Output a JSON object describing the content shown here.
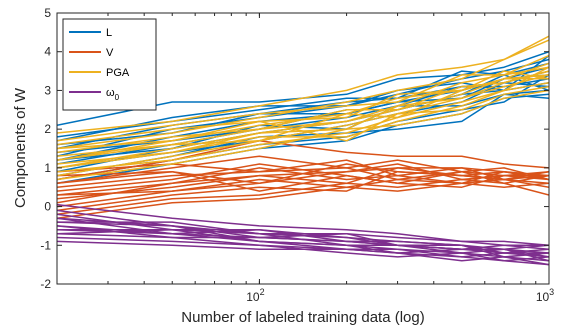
{
  "chart_data": {
    "type": "line",
    "xscale": "log",
    "xlabel": "Number of labeled training data (log)",
    "ylabel": "Components of W",
    "xlim": [
      20,
      1000
    ],
    "ylim": [
      -2,
      5
    ],
    "x_ticks": [
      {
        "value": 100,
        "base": "10",
        "exp": "2"
      },
      {
        "value": 1000,
        "base": "10",
        "exp": "3"
      }
    ],
    "y_ticks": [
      -2,
      -1,
      0,
      1,
      2,
      3,
      4,
      5
    ],
    "grid": false,
    "legend": {
      "placement": "top-left",
      "entries": [
        {
          "series": "L",
          "label": "L",
          "sub": ""
        },
        {
          "series": "V",
          "label": "V",
          "sub": ""
        },
        {
          "series": "PGA",
          "label": "PGA",
          "sub": ""
        },
        {
          "series": "omega0",
          "label": "ω",
          "sub": "0"
        }
      ]
    },
    "x": [
      20,
      50,
      100,
      200,
      300,
      500,
      700,
      1000
    ],
    "series": [
      {
        "name": "L",
        "color": "#0072BD",
        "lines": [
          [
            2.1,
            2.7,
            2.7,
            2.9,
            3.3,
            3.4,
            3.6,
            4.0
          ],
          [
            1.7,
            2.3,
            2.6,
            2.6,
            2.9,
            3.3,
            3.5,
            3.8
          ],
          [
            1.5,
            2.1,
            2.4,
            2.7,
            2.8,
            3.1,
            3.2,
            3.5
          ],
          [
            1.2,
            1.8,
            2.2,
            2.4,
            2.7,
            3.0,
            3.3,
            3.6
          ],
          [
            0.9,
            1.5,
            1.9,
            2.2,
            2.5,
            2.9,
            3.0,
            3.2
          ],
          [
            1.6,
            1.9,
            2.4,
            2.4,
            2.7,
            2.8,
            3.3,
            3.4
          ],
          [
            1.1,
            1.6,
            2.0,
            2.3,
            2.6,
            3.1,
            3.1,
            3.3
          ],
          [
            1.4,
            1.7,
            2.0,
            2.5,
            2.5,
            2.9,
            3.4,
            3.0
          ],
          [
            0.8,
            1.3,
            1.8,
            1.9,
            2.0,
            2.2,
            2.9,
            2.8
          ],
          [
            1.3,
            2.0,
            2.3,
            2.6,
            3.0,
            3.2,
            3.0,
            3.9
          ],
          [
            1.0,
            1.4,
            1.7,
            2.1,
            2.4,
            2.7,
            3.2,
            3.1
          ],
          [
            0.7,
            1.2,
            1.6,
            1.8,
            2.2,
            2.5,
            2.7,
            3.4
          ],
          [
            1.8,
            2.2,
            2.5,
            2.8,
            2.8,
            3.5,
            3.4,
            3.7
          ],
          [
            1.2,
            1.5,
            2.1,
            2.0,
            2.6,
            2.6,
            2.9,
            3.0
          ],
          [
            0.6,
            1.1,
            1.5,
            1.7,
            2.1,
            2.4,
            2.8,
            2.9
          ]
        ]
      },
      {
        "name": "V",
        "color": "#D95319",
        "lines": [
          [
            0.7,
            1.2,
            1.7,
            1.4,
            1.3,
            1.3,
            1.1,
            1.0
          ],
          [
            0.6,
            1.0,
            1.3,
            1.0,
            1.2,
            0.9,
            0.8,
            0.8
          ],
          [
            0.3,
            0.6,
            1.0,
            0.7,
            0.8,
            0.6,
            0.9,
            0.7
          ],
          [
            0.5,
            0.8,
            0.9,
            1.2,
            0.8,
            1.0,
            0.7,
            0.9
          ],
          [
            0.0,
            0.4,
            0.7,
            0.5,
            0.7,
            0.6,
            0.5,
            0.6
          ],
          [
            -0.2,
            0.2,
            0.3,
            0.6,
            0.5,
            0.7,
            0.6,
            0.3
          ],
          [
            0.8,
            0.9,
            0.6,
            0.9,
            1.0,
            0.8,
            0.9,
            0.8
          ],
          [
            0.4,
            0.7,
            1.1,
            0.8,
            0.6,
            0.9,
            1.0,
            0.7
          ],
          [
            0.2,
            0.5,
            0.8,
            0.9,
            1.1,
            0.7,
            0.8,
            0.9
          ],
          [
            -0.1,
            0.3,
            0.5,
            0.4,
            0.9,
            0.8,
            0.7,
            0.6
          ],
          [
            0.9,
            1.1,
            0.9,
            1.0,
            0.7,
            0.9,
            0.6,
            0.8
          ],
          [
            0.1,
            0.6,
            0.8,
            0.6,
            1.0,
            1.0,
            0.9,
            0.7
          ],
          [
            0.6,
            0.9,
            0.4,
            0.8,
            0.6,
            0.5,
            0.8,
            0.7
          ],
          [
            0.3,
            0.4,
            0.6,
            1.1,
            0.9,
            0.8,
            0.7,
            0.8
          ],
          [
            -0.3,
            0.1,
            0.2,
            0.5,
            0.4,
            0.6,
            0.7,
            0.5
          ]
        ]
      },
      {
        "name": "PGA",
        "color": "#EDB120",
        "lines": [
          [
            1.9,
            2.2,
            2.6,
            3.0,
            3.4,
            3.6,
            3.8,
            4.4
          ],
          [
            1.5,
            1.9,
            2.3,
            2.7,
            3.0,
            3.3,
            3.8,
            4.3
          ],
          [
            1.2,
            1.7,
            2.1,
            2.4,
            2.8,
            3.0,
            3.3,
            3.7
          ],
          [
            1.0,
            1.5,
            1.9,
            2.2,
            2.6,
            3.2,
            3.4,
            3.6
          ],
          [
            0.8,
            1.3,
            1.7,
            2.1,
            2.4,
            2.8,
            3.1,
            3.4
          ],
          [
            1.3,
            1.6,
            2.0,
            2.5,
            2.5,
            3.1,
            3.2,
            3.5
          ],
          [
            1.6,
            2.0,
            2.2,
            2.3,
            2.9,
            3.0,
            3.5,
            3.3
          ],
          [
            1.1,
            1.4,
            1.8,
            1.8,
            2.2,
            2.6,
            3.0,
            3.2
          ],
          [
            1.4,
            1.8,
            2.0,
            2.2,
            2.5,
            2.9,
            3.3,
            3.4
          ],
          [
            0.9,
            1.2,
            1.6,
            1.9,
            2.3,
            2.7,
            3.0,
            3.6
          ],
          [
            1.7,
            2.1,
            2.4,
            2.6,
            2.7,
            3.4,
            3.4,
            3.9
          ],
          [
            1.0,
            1.4,
            1.9,
            2.0,
            2.6,
            2.8,
            3.2,
            3.5
          ],
          [
            1.2,
            1.6,
            1.7,
            2.4,
            2.3,
            3.0,
            3.3,
            3.3
          ],
          [
            1.5,
            1.7,
            2.2,
            1.7,
            2.4,
            2.5,
            2.9,
            3.1
          ],
          [
            0.7,
            1.1,
            1.5,
            2.0,
            2.1,
            2.4,
            2.8,
            3.0
          ]
        ]
      },
      {
        "name": "omega0",
        "color": "#7E2F8E",
        "lines": [
          [
            0.05,
            -0.3,
            -0.5,
            -0.6,
            -0.7,
            -0.9,
            -0.9,
            -1.0
          ],
          [
            -0.1,
            -0.5,
            -0.7,
            -0.8,
            -0.9,
            -1.0,
            -1.1,
            -1.2
          ],
          [
            -0.3,
            -0.5,
            -0.8,
            -0.9,
            -1.0,
            -1.1,
            -1.1,
            -1.3
          ],
          [
            -0.6,
            -0.6,
            -0.9,
            -1.1,
            -1.1,
            -1.2,
            -1.3,
            -1.4
          ],
          [
            -0.5,
            -0.7,
            -0.6,
            -0.8,
            -1.0,
            -1.0,
            -1.2,
            -1.1
          ],
          [
            -0.7,
            -0.8,
            -1.0,
            -1.1,
            -1.2,
            -1.3,
            -1.4,
            -1.5
          ],
          [
            -0.4,
            -0.4,
            -0.7,
            -0.7,
            -0.8,
            -0.9,
            -1.0,
            -1.0
          ],
          [
            -0.2,
            -0.6,
            -0.6,
            -0.9,
            -1.0,
            -1.1,
            -1.0,
            -1.1
          ],
          [
            -0.8,
            -0.9,
            -1.0,
            -1.2,
            -1.3,
            -1.2,
            -1.4,
            -1.3
          ],
          [
            -0.6,
            -0.7,
            -0.9,
            -1.0,
            -1.1,
            -1.3,
            -1.2,
            -1.2
          ],
          [
            -0.5,
            -0.8,
            -0.8,
            -0.9,
            -0.9,
            -1.0,
            -1.3,
            -1.2
          ],
          [
            -0.7,
            -0.6,
            -0.7,
            -1.0,
            -1.0,
            -1.1,
            -1.1,
            -1.4
          ],
          [
            -0.4,
            -0.5,
            -0.9,
            -1.0,
            -1.2,
            -1.1,
            -1.2,
            -1.3
          ],
          [
            -0.9,
            -1.0,
            -1.1,
            -1.1,
            -1.2,
            -1.4,
            -1.3,
            -1.5
          ],
          [
            -0.3,
            -0.7,
            -0.8,
            -0.7,
            -1.0,
            -1.2,
            -1.1,
            -1.0
          ]
        ]
      }
    ]
  }
}
